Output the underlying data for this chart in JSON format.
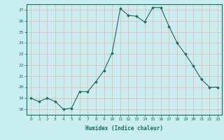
{
  "x": [
    0,
    1,
    2,
    3,
    4,
    5,
    6,
    7,
    8,
    9,
    10,
    11,
    12,
    13,
    14,
    15,
    16,
    17,
    18,
    19,
    20,
    21,
    22,
    23
  ],
  "y": [
    19,
    18.7,
    19,
    18.7,
    18,
    18.1,
    19.6,
    19.6,
    20.5,
    21.5,
    23.1,
    27.1,
    26.5,
    26.4,
    25.9,
    27.2,
    27.2,
    25.5,
    24.0,
    23.0,
    21.9,
    20.7,
    20.0,
    20.0
  ],
  "xlabel": "Humidex (Indice chaleur)",
  "bg_color": "#c8eef0",
  "grid_color": "#e8b8b8",
  "line_color": "#1a6b5a",
  "marker_color": "#1a6b5a",
  "ylim": [
    17.5,
    27.5
  ],
  "xlim": [
    -0.5,
    23.5
  ],
  "yticks": [
    18,
    19,
    20,
    21,
    22,
    23,
    24,
    25,
    26,
    27
  ],
  "xticks": [
    0,
    1,
    2,
    3,
    4,
    5,
    6,
    7,
    8,
    9,
    10,
    11,
    12,
    13,
    14,
    15,
    16,
    17,
    18,
    19,
    20,
    21,
    22,
    23
  ]
}
